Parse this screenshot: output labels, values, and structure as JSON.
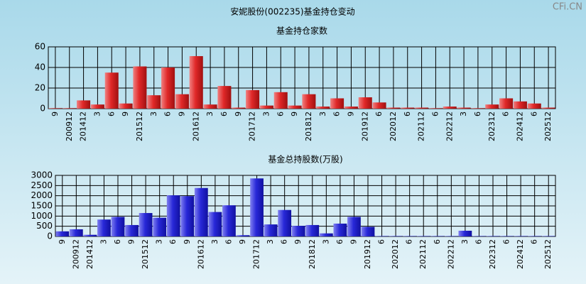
{
  "title": "安妮股份(002235)基金持仓变动",
  "watermark": "CFi.CN",
  "chart_data": [
    {
      "type": "bar",
      "title": "基金持仓家数",
      "categories": [
        "9",
        "200912",
        "201412",
        "3",
        "6",
        "9",
        "201512",
        "3",
        "6",
        "9",
        "201612",
        "3",
        "6",
        "9",
        "201712",
        "3",
        "6",
        "9",
        "201812",
        "3",
        "6",
        "9",
        "201912",
        "6",
        "202012",
        "6",
        "202112",
        "6",
        "202212",
        "3",
        "6",
        "202312",
        "6",
        "202412",
        "6",
        "202512"
      ],
      "values": [
        0.5,
        0.5,
        8,
        4,
        35,
        5,
        41,
        13,
        40,
        14,
        51,
        4,
        22,
        1,
        18,
        3,
        16,
        3,
        14,
        2,
        10,
        2,
        11,
        6,
        1,
        1,
        1,
        0.5,
        2,
        1,
        0.5,
        4,
        10,
        7,
        5,
        1
      ],
      "color": "#e02828",
      "ylim": [
        0,
        60
      ],
      "yticks": [
        0,
        20,
        40,
        60
      ],
      "grid": true
    },
    {
      "type": "bar",
      "title": "基金总持股数(万股)",
      "categories": [
        "9",
        "200912",
        "201412",
        "3",
        "6",
        "9",
        "201512",
        "3",
        "6",
        "9",
        "201612",
        "3",
        "6",
        "9",
        "201712",
        "3",
        "6",
        "9",
        "201812",
        "3",
        "6",
        "9",
        "201912",
        "6",
        "202012",
        "6",
        "202112",
        "6",
        "202212",
        "3",
        "6",
        "202312",
        "6",
        "202412",
        "6",
        "202512"
      ],
      "values": [
        250,
        350,
        80,
        830,
        960,
        560,
        1150,
        920,
        2020,
        1980,
        2380,
        1200,
        1530,
        60,
        2850,
        590,
        1300,
        520,
        560,
        150,
        630,
        960,
        470,
        20,
        20,
        20,
        20,
        20,
        20,
        280,
        20,
        20,
        20,
        20,
        20,
        20
      ],
      "color": "#2828d8",
      "ylim": [
        0,
        3000
      ],
      "yticks": [
        0,
        500,
        1000,
        1500,
        2000,
        2500,
        3000
      ],
      "grid": true
    }
  ]
}
